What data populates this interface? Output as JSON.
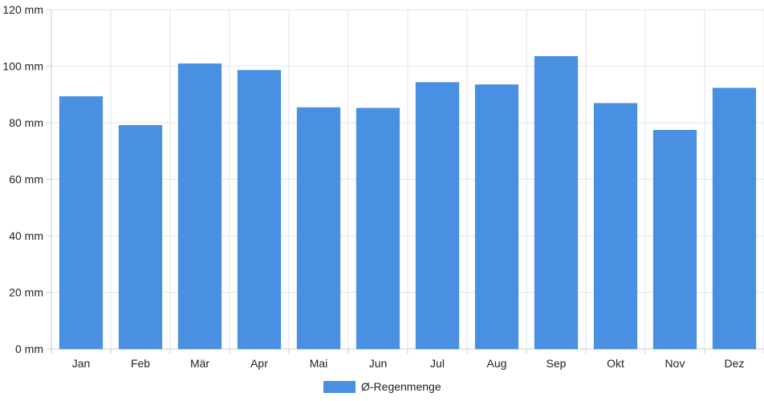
{
  "chart_data": {
    "type": "bar",
    "categories": [
      "Jan",
      "Feb",
      "Mär",
      "Apr",
      "Mai",
      "Jun",
      "Jul",
      "Aug",
      "Sep",
      "Okt",
      "Nov",
      "Dez"
    ],
    "series": [
      {
        "name": "Ø-Regenmenge",
        "values": [
          89.2,
          79.0,
          100.8,
          98.5,
          85.3,
          85.1,
          94.2,
          93.4,
          103.4,
          86.8,
          77.3,
          92.2
        ]
      }
    ],
    "ylim": [
      0,
      120
    ],
    "yticks": [
      0,
      20,
      40,
      60,
      80,
      100,
      120
    ],
    "yunit": "mm",
    "grid": true,
    "legend_position": "bottom",
    "colors": {
      "bar": "#4a90e2",
      "bar_border": "#4a90e2",
      "grid": "#e6e6e6",
      "axis": "#cccccc"
    }
  }
}
